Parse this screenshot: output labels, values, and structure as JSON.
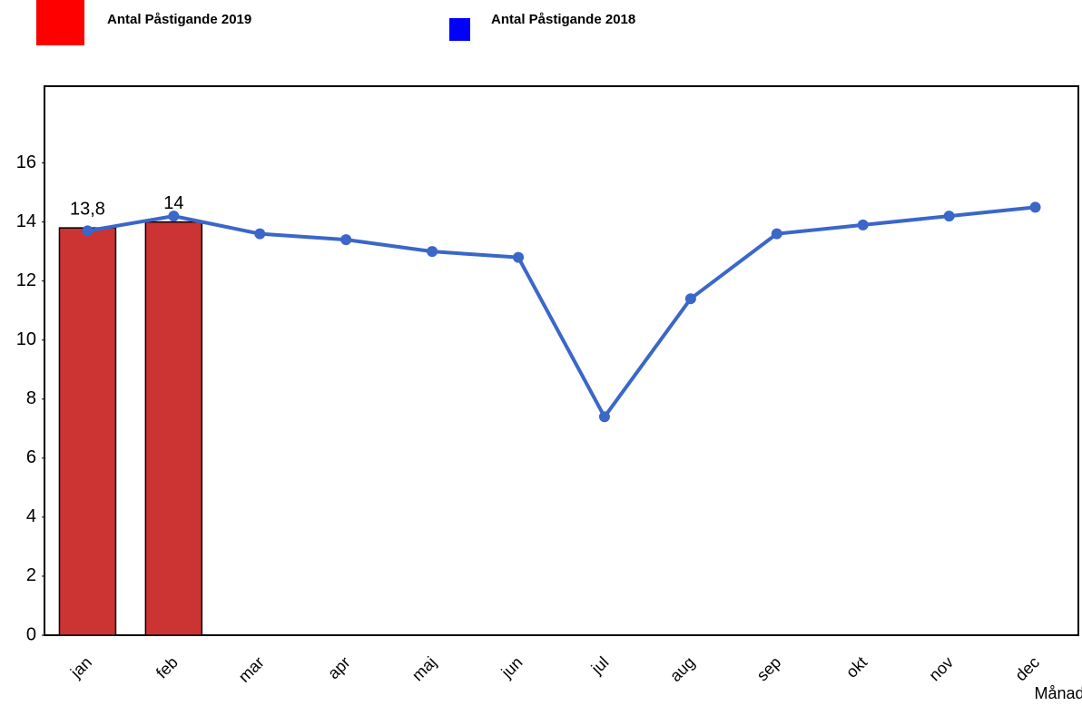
{
  "chart_data": {
    "type": "bar",
    "x_label": "Månad",
    "categories": [
      "jan",
      "feb",
      "mar",
      "apr",
      "maj",
      "jun",
      "jul",
      "aug",
      "sep",
      "okt",
      "nov",
      "dec"
    ],
    "series": [
      {
        "name": "Antal Påstigande 2019",
        "type": "bar",
        "color": "#cc3333",
        "legend_color": "#ff0000",
        "values": [
          13.8,
          14,
          null,
          null,
          null,
          null,
          null,
          null,
          null,
          null,
          null,
          null
        ],
        "value_labels": [
          "13,8",
          "14",
          null,
          null,
          null,
          null,
          null,
          null,
          null,
          null,
          null,
          null
        ]
      },
      {
        "name": "Antal Påstigande 2018",
        "type": "line",
        "color": "#3a67c8",
        "legend_color": "#0000ff",
        "values": [
          13.7,
          14.2,
          13.6,
          13.4,
          13.0,
          12.8,
          7.4,
          11.4,
          13.6,
          13.9,
          14.2,
          14.5
        ]
      }
    ],
    "ylim": [
      0,
      18.6
    ],
    "yticks": [
      0,
      2,
      4,
      6,
      8,
      10,
      12,
      14,
      16
    ],
    "grid": false
  }
}
